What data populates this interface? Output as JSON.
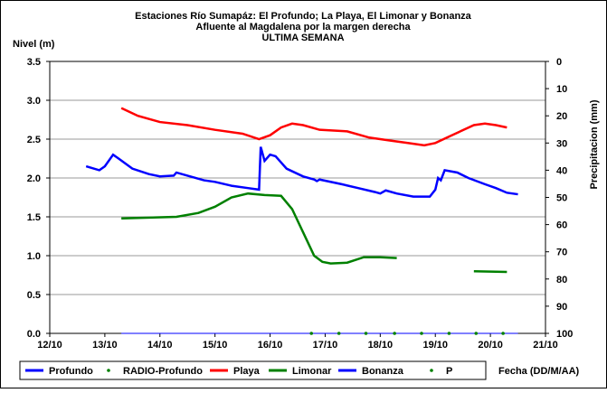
{
  "chart_data": {
    "type": "line",
    "title": [
      "Estaciones Río Sumapáz: El Profundo; La Playa, El Limonar y Bonanza",
      "Afluente al Magdalena por la margen derecha",
      "ULTIMA SEMANA"
    ],
    "y_label": "Nivel (m)",
    "y2_label": "Precipitacion (mm)",
    "x_label": "Fecha (DD/M/AA)",
    "xlim": [
      12,
      21
    ],
    "xticks": [
      {
        "value": 12,
        "label": "12/10"
      },
      {
        "value": 13,
        "label": "13/10"
      },
      {
        "value": 14,
        "label": "14/10"
      },
      {
        "value": 15,
        "label": "15/10"
      },
      {
        "value": 16,
        "label": "16/10"
      },
      {
        "value": 17,
        "label": "17/10"
      },
      {
        "value": 18,
        "label": "18/10"
      },
      {
        "value": 19,
        "label": "19/10"
      },
      {
        "value": 20,
        "label": "20/10"
      },
      {
        "value": 21,
        "label": "21/10"
      }
    ],
    "ylim": [
      0,
      3.5
    ],
    "yticks": [
      {
        "value": 0,
        "label": "0.0"
      },
      0.5,
      {
        "value": 1,
        "label": "1.0"
      },
      1.5,
      {
        "value": 2,
        "label": "2.0"
      },
      2.5,
      {
        "value": 3,
        "label": "3.0"
      },
      3.5
    ],
    "y2lim": [
      0,
      100
    ],
    "y2ticks": [
      0,
      10,
      20,
      30,
      40,
      50,
      60,
      70,
      80,
      90,
      100
    ],
    "y2_inverted": true,
    "grid": true,
    "legend": "bottom",
    "series": [
      {
        "name": "Profundo",
        "color": "#0000ff",
        "style": "line",
        "width": 2.5,
        "x": [
          12.66,
          12.9,
          13.0,
          13.15,
          13.25,
          13.5,
          13.8,
          14.0,
          14.25,
          14.3,
          14.5,
          14.8,
          15.0,
          15.3,
          15.6,
          15.8,
          15.83,
          15.9,
          16.0,
          16.1,
          16.3,
          16.6,
          16.8,
          16.85,
          16.9,
          17.3,
          17.6,
          17.9,
          18.0,
          18.1,
          18.3,
          18.6,
          18.9,
          19.0,
          19.05,
          19.1,
          19.17,
          19.4,
          19.6,
          19.9,
          20.1,
          20.3,
          20.5
        ],
        "values": [
          2.15,
          2.1,
          2.15,
          2.3,
          2.25,
          2.12,
          2.05,
          2.02,
          2.03,
          2.07,
          2.03,
          1.97,
          1.95,
          1.9,
          1.87,
          1.85,
          2.4,
          2.22,
          2.3,
          2.28,
          2.12,
          2.02,
          1.98,
          1.96,
          1.98,
          1.92,
          1.87,
          1.82,
          1.8,
          1.84,
          1.8,
          1.76,
          1.76,
          1.85,
          2.0,
          1.97,
          2.1,
          2.07,
          2.0,
          1.92,
          1.87,
          1.81,
          1.79
        ]
      },
      {
        "name": "RADIO-Profundo",
        "color": "#008000",
        "style": "dot",
        "x": [],
        "values": []
      },
      {
        "name": "Playa",
        "color": "#ff0000",
        "style": "line",
        "width": 2.5,
        "x": [
          13.3,
          13.6,
          14.0,
          14.5,
          15.0,
          15.5,
          15.8,
          16.0,
          16.2,
          16.4,
          16.6,
          16.9,
          17.4,
          17.8,
          18.2,
          18.5,
          18.8,
          19.0,
          19.3,
          19.7,
          19.9,
          20.1,
          20.3
        ],
        "values": [
          2.9,
          2.8,
          2.72,
          2.68,
          2.62,
          2.57,
          2.5,
          2.55,
          2.65,
          2.7,
          2.68,
          2.62,
          2.6,
          2.52,
          2.48,
          2.45,
          2.42,
          2.45,
          2.55,
          2.68,
          2.7,
          2.68,
          2.65
        ]
      },
      {
        "name": "Limonar",
        "color": "#008000",
        "style": "line",
        "width": 2.5,
        "x": [
          13.3,
          13.8,
          14.3,
          14.7,
          15.0,
          15.3,
          15.6,
          15.9,
          16.2,
          16.4,
          16.6,
          16.8,
          16.95,
          17.1,
          17.4,
          17.7,
          18.0,
          18.3,
          19.0,
          19.7,
          20.3
        ],
        "values": [
          1.48,
          1.49,
          1.5,
          1.55,
          1.63,
          1.75,
          1.8,
          1.78,
          1.77,
          1.6,
          1.3,
          1.0,
          0.92,
          0.9,
          0.91,
          0.98,
          0.98,
          0.97,
          null,
          0.8,
          0.79
        ]
      },
      {
        "name": "Bonanza",
        "color": "#0000ff",
        "style": "line",
        "width": 1,
        "x": [
          13.3,
          20.5
        ],
        "values": [
          0,
          0
        ]
      },
      {
        "name": "P",
        "color": "#008000",
        "style": "dot",
        "x": [
          16.75,
          17.25,
          17.74,
          18.26,
          18.75,
          19.25,
          19.74,
          20.23
        ],
        "values": [
          0,
          0,
          0,
          0,
          0,
          0,
          0,
          0
        ]
      }
    ]
  }
}
